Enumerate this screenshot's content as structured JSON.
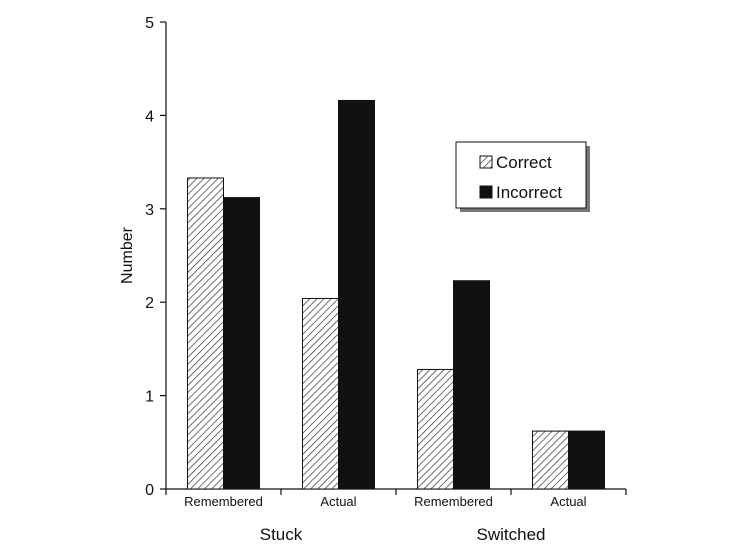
{
  "chart_data": {
    "type": "bar",
    "title": "",
    "ylabel": "Number",
    "xlabel": "",
    "ylim": [
      0,
      5
    ],
    "yticks": [
      0,
      1,
      2,
      3,
      4,
      5
    ],
    "groups": [
      {
        "name": "Stuck",
        "categories": [
          "Remembered",
          "Actual"
        ]
      },
      {
        "name": "Switched",
        "categories": [
          "Remembered",
          "Actual"
        ]
      }
    ],
    "categories": [
      "Remembered",
      "Actual",
      "Remembered",
      "Actual"
    ],
    "series": [
      {
        "name": "Correct",
        "pattern": "hatched",
        "values": [
          3.33,
          2.04,
          1.28,
          0.62
        ]
      },
      {
        "name": "Incorrect",
        "pattern": "solid",
        "values": [
          3.12,
          4.16,
          2.23,
          0.62
        ]
      }
    ],
    "legend_position": "right",
    "colors": {
      "solid": "#111111",
      "hatch": "#333333",
      "axis": "#111111"
    }
  }
}
